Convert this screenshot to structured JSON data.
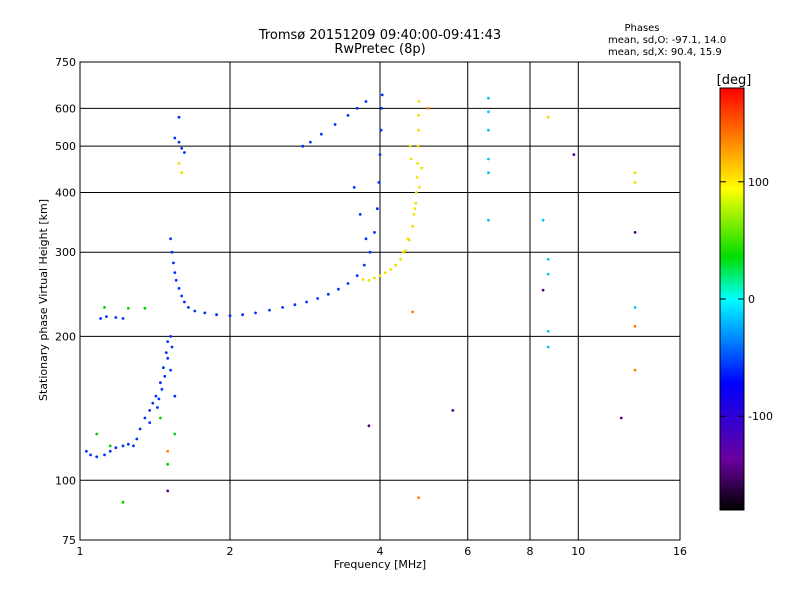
{
  "header": {
    "title": "Tromsø 20151209 09:40:00-09:41:43",
    "subtitle": "RwPretec (8p)"
  },
  "stats": {
    "heading": "Phases",
    "line_o": "mean, sd,O: -97.1, 14.0",
    "line_x": "mean, sd,X:  90.4, 15.9"
  },
  "colorbar": {
    "label": "[deg]",
    "ticks": [
      {
        "value": 100,
        "label": "100"
      },
      {
        "value": 0,
        "label": "0"
      },
      {
        "value": -100,
        "label": "-100"
      }
    ],
    "range": [
      -180,
      180
    ]
  },
  "chart_data": {
    "type": "scatter",
    "title": "Tromsø 20151209 09:40:00-09:41:43",
    "subtitle": "RwPretec (8p)",
    "xlabel": "Frequency [MHz]",
    "ylabel": "Stationary phase Virtual Height [km]",
    "x_scale": "log",
    "y_scale": "log",
    "xlim": [
      1,
      16
    ],
    "ylim": [
      75,
      750
    ],
    "x_ticks": [
      {
        "value": 1,
        "label": "1"
      },
      {
        "value": 2,
        "label": "2"
      },
      {
        "value": 4,
        "label": "4"
      },
      {
        "value": 6,
        "label": "6"
      },
      {
        "value": 8,
        "label": "8"
      },
      {
        "value": 10,
        "label": "10"
      },
      {
        "value": 16,
        "label": "16"
      }
    ],
    "y_ticks": [
      {
        "value": 75,
        "label": "75"
      },
      {
        "value": 100,
        "label": "100"
      },
      {
        "value": 200,
        "label": "200"
      },
      {
        "value": 300,
        "label": "300"
      },
      {
        "value": 400,
        "label": "400"
      },
      {
        "value": 500,
        "label": "500"
      },
      {
        "value": 600,
        "label": "600"
      },
      {
        "value": 750,
        "label": "750"
      }
    ],
    "grid": true,
    "color_encoding": "phase [deg]",
    "series": [
      {
        "color": "#0030ff",
        "points": [
          [
            1.03,
            115
          ],
          [
            1.05,
            113
          ],
          [
            1.08,
            112
          ],
          [
            1.12,
            113
          ],
          [
            1.15,
            115
          ],
          [
            1.18,
            117
          ],
          [
            1.22,
            118
          ],
          [
            1.25,
            119
          ],
          [
            1.28,
            118
          ],
          [
            1.3,
            122
          ],
          [
            1.32,
            128
          ],
          [
            1.35,
            135
          ],
          [
            1.38,
            140
          ],
          [
            1.4,
            145
          ],
          [
            1.42,
            150
          ],
          [
            1.45,
            160
          ],
          [
            1.47,
            172
          ],
          [
            1.49,
            185
          ],
          [
            1.5,
            195
          ],
          [
            1.52,
            200
          ],
          [
            1.43,
            142
          ],
          [
            1.46,
            155
          ],
          [
            1.48,
            165
          ],
          [
            1.44,
            148
          ],
          [
            1.38,
            132
          ],
          [
            1.5,
            180
          ],
          [
            1.53,
            190
          ],
          [
            1.55,
            150
          ],
          [
            1.52,
            170
          ],
          [
            1.1,
            218
          ],
          [
            1.13,
            220
          ],
          [
            1.18,
            219
          ],
          [
            1.22,
            218
          ],
          [
            1.52,
            320
          ],
          [
            1.53,
            300
          ],
          [
            1.54,
            285
          ],
          [
            1.55,
            272
          ],
          [
            1.56,
            262
          ],
          [
            1.58,
            252
          ],
          [
            1.6,
            243
          ],
          [
            1.62,
            236
          ],
          [
            1.65,
            230
          ],
          [
            1.7,
            226
          ],
          [
            1.78,
            224
          ],
          [
            1.88,
            222
          ],
          [
            2.0,
            221
          ],
          [
            2.12,
            222
          ],
          [
            2.25,
            224
          ],
          [
            2.4,
            227
          ],
          [
            2.55,
            230
          ],
          [
            2.7,
            233
          ],
          [
            2.85,
            236
          ],
          [
            3.0,
            240
          ],
          [
            3.15,
            245
          ],
          [
            3.3,
            251
          ],
          [
            3.45,
            258
          ],
          [
            3.6,
            268
          ],
          [
            3.72,
            282
          ],
          [
            3.82,
            300
          ],
          [
            3.9,
            330
          ],
          [
            3.95,
            370
          ],
          [
            3.98,
            420
          ],
          [
            4.0,
            480
          ],
          [
            4.02,
            540
          ],
          [
            4.03,
            600
          ],
          [
            4.04,
            640
          ],
          [
            2.8,
            500
          ],
          [
            2.9,
            510
          ],
          [
            3.05,
            530
          ],
          [
            3.25,
            555
          ],
          [
            3.45,
            580
          ],
          [
            3.6,
            600
          ],
          [
            3.75,
            620
          ],
          [
            1.58,
            510
          ],
          [
            1.6,
            495
          ],
          [
            1.62,
            485
          ],
          [
            1.58,
            575
          ],
          [
            1.55,
            520
          ],
          [
            3.55,
            410
          ],
          [
            3.65,
            360
          ],
          [
            3.75,
            320
          ]
        ]
      },
      {
        "color": "#f0e000",
        "points": [
          [
            3.7,
            263
          ],
          [
            3.8,
            262
          ],
          [
            3.9,
            265
          ],
          [
            4.0,
            268
          ],
          [
            4.1,
            272
          ],
          [
            4.2,
            276
          ],
          [
            4.3,
            282
          ],
          [
            4.4,
            290
          ],
          [
            4.5,
            302
          ],
          [
            4.58,
            318
          ],
          [
            4.65,
            340
          ],
          [
            4.7,
            370
          ],
          [
            4.73,
            400
          ],
          [
            4.75,
            430
          ],
          [
            4.76,
            460
          ],
          [
            4.77,
            500
          ],
          [
            4.78,
            540
          ],
          [
            4.78,
            580
          ],
          [
            4.79,
            620
          ],
          [
            4.85,
            450
          ],
          [
            4.8,
            410
          ],
          [
            4.72,
            380
          ],
          [
            4.68,
            360
          ],
          [
            4.55,
            320
          ],
          [
            4.45,
            300
          ],
          [
            4.6,
            500
          ],
          [
            4.62,
            470
          ],
          [
            1.58,
            460
          ],
          [
            1.6,
            440
          ],
          [
            8.7,
            575
          ],
          [
            13.0,
            440
          ],
          [
            13.0,
            420
          ]
        ]
      },
      {
        "color": "#00c8ff",
        "points": [
          [
            6.6,
            630
          ],
          [
            6.6,
            590
          ],
          [
            6.6,
            540
          ],
          [
            6.6,
            470
          ],
          [
            6.6,
            440
          ],
          [
            6.6,
            350
          ],
          [
            8.5,
            350
          ],
          [
            8.7,
            290
          ],
          [
            8.7,
            270
          ],
          [
            8.7,
            205
          ],
          [
            8.7,
            190
          ],
          [
            13.0,
            230
          ]
        ]
      },
      {
        "color": "#00d000",
        "points": [
          [
            1.12,
            230
          ],
          [
            1.25,
            229
          ],
          [
            1.35,
            229
          ],
          [
            1.08,
            125
          ],
          [
            1.15,
            118
          ],
          [
            1.22,
            90
          ],
          [
            1.5,
            108
          ],
          [
            1.45,
            135
          ],
          [
            1.55,
            125
          ]
        ]
      },
      {
        "color": "#ff8000",
        "points": [
          [
            4.78,
            92
          ],
          [
            4.65,
            225
          ],
          [
            5.0,
            600
          ],
          [
            13.0,
            210
          ],
          [
            13.0,
            170
          ],
          [
            1.5,
            115
          ]
        ]
      },
      {
        "color": "#500090",
        "points": [
          [
            8.5,
            250
          ],
          [
            9.8,
            480
          ],
          [
            12.2,
            135
          ],
          [
            13.0,
            330
          ],
          [
            5.6,
            140
          ],
          [
            3.8,
            130
          ],
          [
            1.5,
            95
          ]
        ]
      }
    ]
  }
}
